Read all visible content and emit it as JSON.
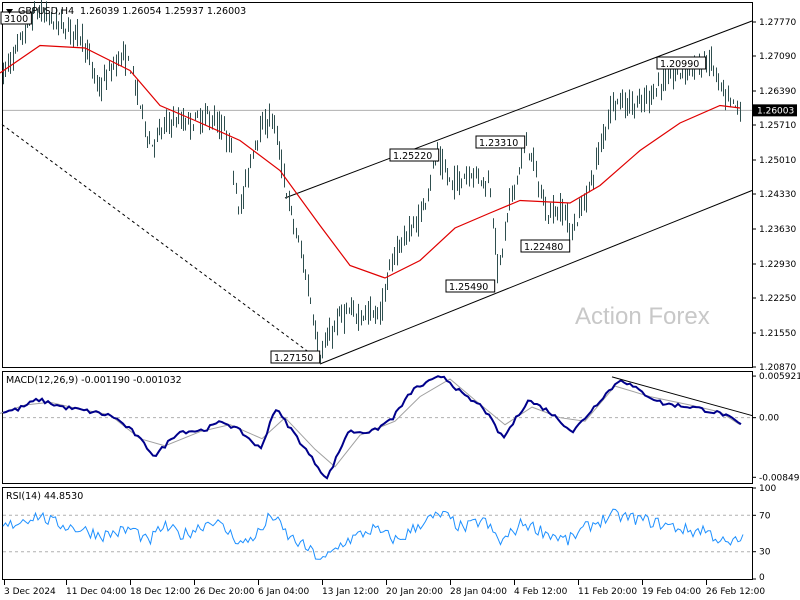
{
  "header": {
    "symbol": "GBPUSD,H4",
    "ohlc": "1.26039 1.26054 1.25937 1.26003"
  },
  "watermark": "Action Forex",
  "price_tag": "1.26003",
  "x_labels": [
    "3 Dec 2024",
    "11 Dec 04:00",
    "18 Dec 12:00",
    "26 Dec 20:00",
    "6 Jan 04:00",
    "13 Jan 12:00",
    "20 Jan 20:00",
    "28 Jan 04:00",
    "4 Feb 12:00",
    "11 Feb 20:00",
    "19 Feb 04:00",
    "26 Feb 12:00"
  ],
  "price_axis": [
    "1.27770",
    "1.27090",
    "1.26390",
    "1.25710",
    "1.25010",
    "1.24330",
    "1.23630",
    "1.22930",
    "1.22250",
    "1.21550",
    "1.20870"
  ],
  "annotations": [
    "3100",
    "1.27150",
    "1.25220",
    "1.25490",
    "1.23310",
    "1.22480",
    "1.20990"
  ],
  "macd": {
    "label": "MACD(12,26,9) -0.001190 -0.001032",
    "axis": [
      "0.005921",
      "0.00",
      "-0.00849"
    ]
  },
  "rsi": {
    "label": "RSI(14) 44.8530",
    "axis": [
      "100",
      "70",
      "30",
      "0"
    ]
  },
  "colors": {
    "candle": "#2f4f4f",
    "ma": "#e00000",
    "macd": "#00008b",
    "signal": "#a0a0a0",
    "rsi": "#1e90ff"
  },
  "chart_data": [
    {
      "type": "candlestick",
      "title": "GBPUSD,H4",
      "ylim": [
        1.2087,
        1.2815
      ],
      "pivots": [
        {
          "label": "3100",
          "value": 1.281
        },
        {
          "label": "1.20990",
          "value": 1.2099
        },
        {
          "label": "1.25220",
          "value": 1.2522
        },
        {
          "label": "1.22480",
          "value": 1.2248
        },
        {
          "label": "1.25490",
          "value": 1.2549
        },
        {
          "label": "1.23310",
          "value": 1.2331
        },
        {
          "label": "1.27150",
          "value": 1.2715
        }
      ],
      "path": [
        [
          0,
          1.2665
        ],
        [
          14,
          1.271
        ],
        [
          36,
          1.28
        ],
        [
          60,
          1.277
        ],
        [
          82,
          1.275
        ],
        [
          98,
          1.264
        ],
        [
          120,
          1.271
        ],
        [
          130,
          1.269
        ],
        [
          150,
          1.253
        ],
        [
          170,
          1.258
        ],
        [
          190,
          1.2575
        ],
        [
          210,
          1.259
        ],
        [
          228,
          1.2545
        ],
        [
          240,
          1.24
        ],
        [
          256,
          1.255
        ],
        [
          272,
          1.259
        ],
        [
          290,
          1.24
        ],
        [
          305,
          1.228
        ],
        [
          320,
          1.211
        ],
        [
          340,
          1.219
        ],
        [
          365,
          1.2195
        ],
        [
          380,
          1.2195
        ],
        [
          395,
          1.232
        ],
        [
          420,
          1.2385
        ],
        [
          436,
          1.251
        ],
        [
          452,
          1.245
        ],
        [
          470,
          1.248
        ],
        [
          490,
          1.245
        ],
        [
          498,
          1.227
        ],
        [
          510,
          1.242
        ],
        [
          527,
          1.254
        ],
        [
          545,
          1.24
        ],
        [
          565,
          1.24
        ],
        [
          570,
          1.235
        ],
        [
          590,
          1.245
        ],
        [
          612,
          1.262
        ],
        [
          640,
          1.261
        ],
        [
          660,
          1.2655
        ],
        [
          680,
          1.268
        ],
        [
          700,
          1.269
        ],
        [
          710,
          1.27
        ],
        [
          725,
          1.262
        ],
        [
          740,
          1.26
        ]
      ],
      "moving_average": [
        [
          0,
          1.2675
        ],
        [
          40,
          1.273
        ],
        [
          85,
          1.2725
        ],
        [
          130,
          1.268
        ],
        [
          160,
          1.261
        ],
        [
          195,
          1.258
        ],
        [
          240,
          1.254
        ],
        [
          280,
          1.248
        ],
        [
          320,
          1.237
        ],
        [
          350,
          1.229
        ],
        [
          385,
          1.2265
        ],
        [
          420,
          1.23
        ],
        [
          455,
          1.2365
        ],
        [
          490,
          1.2395
        ],
        [
          520,
          1.242
        ],
        [
          570,
          1.2415
        ],
        [
          600,
          1.245
        ],
        [
          640,
          1.252
        ],
        [
          680,
          1.2575
        ],
        [
          720,
          1.261
        ],
        [
          740,
          1.2605
        ]
      ],
      "channel": {
        "upper": [
          [
            285,
            1.2425
          ],
          [
            752,
            1.2779
          ]
        ],
        "lower": [
          [
            320,
            1.2093
          ],
          [
            752,
            1.244
          ]
        ]
      },
      "trendline": [
        [
          2,
          1.2572
        ],
        [
          320,
          1.21
        ]
      ]
    },
    {
      "type": "line",
      "title": "MACD(12,26,9) -0.001190 -0.001032",
      "ylim": [
        -0.0093,
        0.0065
      ],
      "series": [
        {
          "values": [
            [
              0,
              0.0008
            ],
            [
              15,
              0.0012
            ],
            [
              35,
              0.0026
            ],
            [
              60,
              0.0015
            ],
            [
              90,
              0.0008
            ],
            [
              110,
              0.0002
            ],
            [
              130,
              -0.002
            ],
            [
              152,
              -0.0055
            ],
            [
              175,
              -0.002
            ],
            [
              200,
              -0.0018
            ],
            [
              220,
              -0.0005
            ],
            [
              238,
              -0.002
            ],
            [
              258,
              -0.0045
            ],
            [
              272,
              0.0014
            ],
            [
              290,
              -0.002
            ],
            [
              310,
              -0.006
            ],
            [
              324,
              -0.0087
            ],
            [
              345,
              -0.002
            ],
            [
              370,
              -0.002
            ],
            [
              390,
              0.0
            ],
            [
              410,
              0.004
            ],
            [
              440,
              0.006
            ],
            [
              462,
              0.003
            ],
            [
              480,
              0.0015
            ],
            [
              500,
              -0.003
            ],
            [
              525,
              0.0025
            ],
            [
              545,
              0.001
            ],
            [
              570,
              -0.002
            ],
            [
              600,
              0.003
            ],
            [
              618,
              0.0055
            ],
            [
              640,
              0.0035
            ],
            [
              660,
              0.002
            ],
            [
              690,
              0.0015
            ],
            [
              720,
              0.0005
            ],
            [
              740,
              -0.0012
            ]
          ]
        },
        {
          "values": [
            [
              0,
              0.0006
            ],
            [
              25,
              0.0018
            ],
            [
              50,
              0.0022
            ],
            [
              80,
              0.0012
            ],
            [
              110,
              0.0004
            ],
            [
              140,
              -0.003
            ],
            [
              165,
              -0.004
            ],
            [
              200,
              -0.002
            ],
            [
              230,
              -0.001
            ],
            [
              262,
              -0.003
            ],
            [
              285,
              0.0
            ],
            [
              315,
              -0.0045
            ],
            [
              335,
              -0.007
            ],
            [
              360,
              -0.0025
            ],
            [
              395,
              -0.0005
            ],
            [
              420,
              0.003
            ],
            [
              450,
              0.0055
            ],
            [
              475,
              0.0025
            ],
            [
              505,
              -0.001
            ],
            [
              532,
              0.0015
            ],
            [
              560,
              0.0
            ],
            [
              585,
              -0.0005
            ],
            [
              615,
              0.0045
            ],
            [
              650,
              0.003
            ],
            [
              690,
              0.0018
            ],
            [
              720,
              0.0008
            ],
            [
              740,
              -0.001
            ]
          ]
        }
      ],
      "trendline": [
        [
          612,
          0.0058
        ],
        [
          752,
          0.0003
        ]
      ]
    },
    {
      "type": "line",
      "title": "RSI(14) 44.8530",
      "ylim": [
        0,
        100
      ],
      "levels": [
        70,
        30
      ],
      "series": [
        {
          "values": [
            [
              0,
              56
            ],
            [
              20,
              65
            ],
            [
              35,
              70
            ],
            [
              50,
              62
            ],
            [
              80,
              54
            ],
            [
              100,
              48
            ],
            [
              130,
              55
            ],
            [
              145,
              40
            ],
            [
              160,
              58
            ],
            [
              180,
              48
            ],
            [
              210,
              65
            ],
            [
              240,
              38
            ],
            [
              260,
              55
            ],
            [
              268,
              72
            ],
            [
              285,
              47
            ],
            [
              305,
              33
            ],
            [
              320,
              20
            ],
            [
              340,
              40
            ],
            [
              370,
              55
            ],
            [
              395,
              42
            ],
            [
              420,
              63
            ],
            [
              440,
              71
            ],
            [
              460,
              55
            ],
            [
              480,
              65
            ],
            [
              498,
              40
            ],
            [
              520,
              62
            ],
            [
              545,
              50
            ],
            [
              565,
              42
            ],
            [
              585,
              58
            ],
            [
              610,
              70
            ],
            [
              640,
              65
            ],
            [
              660,
              60
            ],
            [
              690,
              52
            ],
            [
              700,
              55
            ],
            [
              725,
              37
            ],
            [
              740,
              45
            ]
          ]
        }
      ]
    }
  ]
}
